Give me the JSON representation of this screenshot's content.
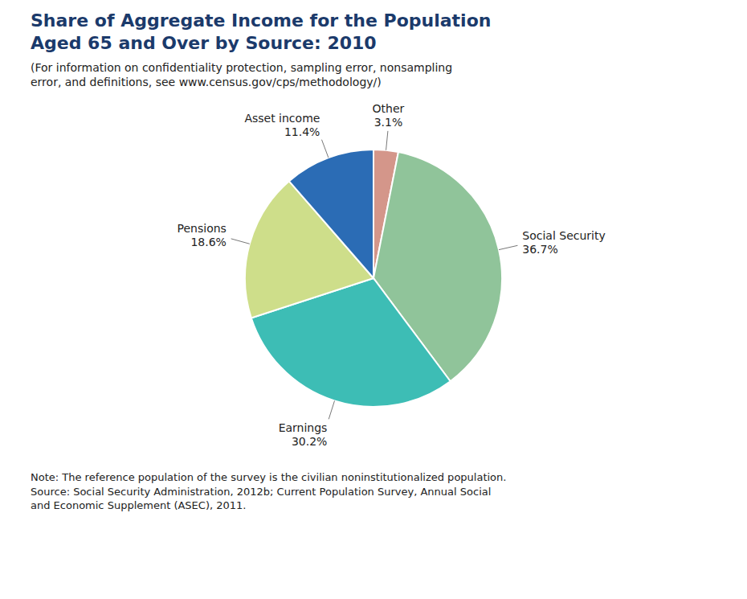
{
  "chart_data": {
    "type": "pie",
    "title": "Share of Aggregate Income for the Population\nAged 65 and Over by Source: 2010",
    "subtitle": "(For information on confidentiality protection, sampling error, nonsampling\n error, and definitions, see www.census.gov/cps/methodology/)",
    "note": "Note: The reference population of the survey is the civilian noninstitutionalized population.\nSource: Social Security Administration, 2012b; Current Population Survey, Annual Social\nand Economic Supplement (ASEC), 2011.",
    "categories": [
      "Other",
      "Social Security",
      "Earnings",
      "Pensions",
      "Asset income"
    ],
    "values": [
      3.1,
      36.7,
      30.2,
      18.6,
      11.4
    ],
    "value_labels": [
      "3.1%",
      "36.7%",
      "30.2%",
      "18.6%",
      "11.4%"
    ],
    "colors": [
      "#d4968a",
      "#90c49a",
      "#3dbdb5",
      "#cede8a",
      "#2b6cb5"
    ]
  }
}
